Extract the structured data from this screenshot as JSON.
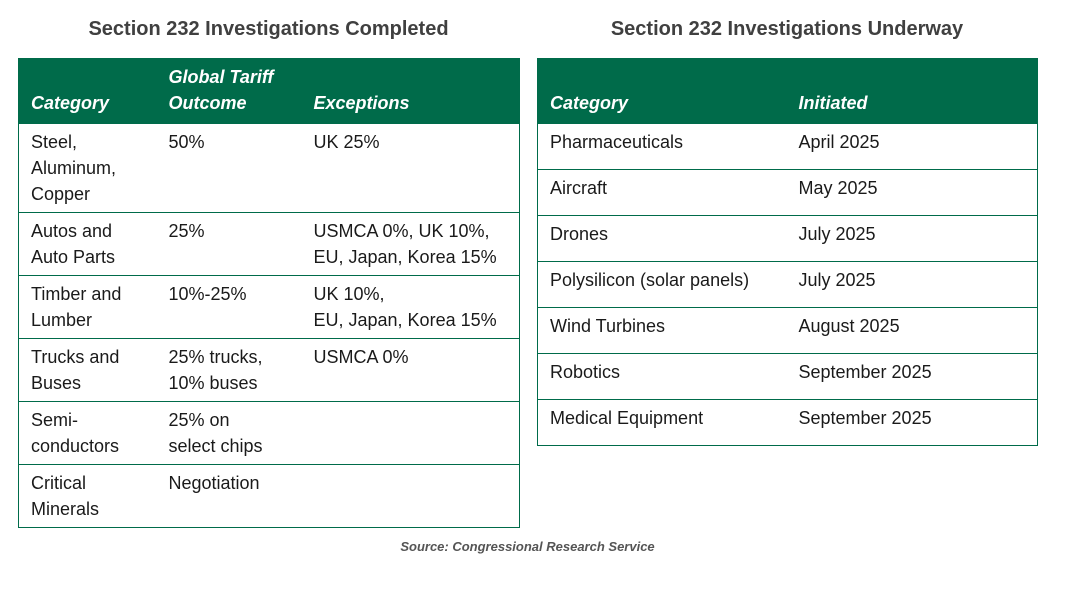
{
  "completed": {
    "title": "Section 232 Investigations Completed",
    "headers": {
      "category": "Category",
      "outcome_line1": "Global Tariff",
      "outcome_line2": "Outcome",
      "exceptions": "Exceptions"
    },
    "rows": [
      {
        "category": [
          "Steel,",
          "Aluminum,",
          "Copper"
        ],
        "outcome": [
          "50%"
        ],
        "exceptions": [
          "UK 25%"
        ]
      },
      {
        "category": [
          "Autos and",
          "Auto Parts"
        ],
        "outcome": [
          "25%"
        ],
        "exceptions": [
          "USMCA 0%, UK 10%,",
          "EU, Japan, Korea 15%"
        ]
      },
      {
        "category": [
          "Timber and",
          "Lumber"
        ],
        "outcome": [
          "10%-25%"
        ],
        "exceptions": [
          "UK 10%,",
          "EU, Japan, Korea 15%"
        ]
      },
      {
        "category": [
          "Trucks and",
          "Buses"
        ],
        "outcome": [
          "25% trucks,",
          "10% buses"
        ],
        "exceptions": [
          "USMCA 0%"
        ]
      },
      {
        "category": [
          "Semi-",
          "conductors"
        ],
        "outcome": [
          "25% on",
          "select chips"
        ],
        "exceptions": []
      },
      {
        "category": [
          "Critical",
          "Minerals"
        ],
        "outcome": [
          "Negotiation"
        ],
        "exceptions": []
      }
    ]
  },
  "underway": {
    "title": "Section 232 Investigations Underway",
    "headers": {
      "category": "Category",
      "initiated": "Initiated"
    },
    "rows": [
      {
        "category": "Pharmaceuticals",
        "initiated": "April 2025"
      },
      {
        "category": "Aircraft",
        "initiated": "May 2025"
      },
      {
        "category": "Drones",
        "initiated": "July 2025"
      },
      {
        "category": "Polysilicon (solar panels)",
        "initiated": "July 2025"
      },
      {
        "category": "Wind Turbines",
        "initiated": "August 2025"
      },
      {
        "category": "Robotics",
        "initiated": "September 2025"
      },
      {
        "category": "Medical Equipment",
        "initiated": "September 2025"
      }
    ]
  },
  "source": "Source: Congressional Research Service",
  "colors": {
    "header_bg": "#006b4a",
    "header_text": "#ffffff",
    "title_text": "#404040"
  }
}
